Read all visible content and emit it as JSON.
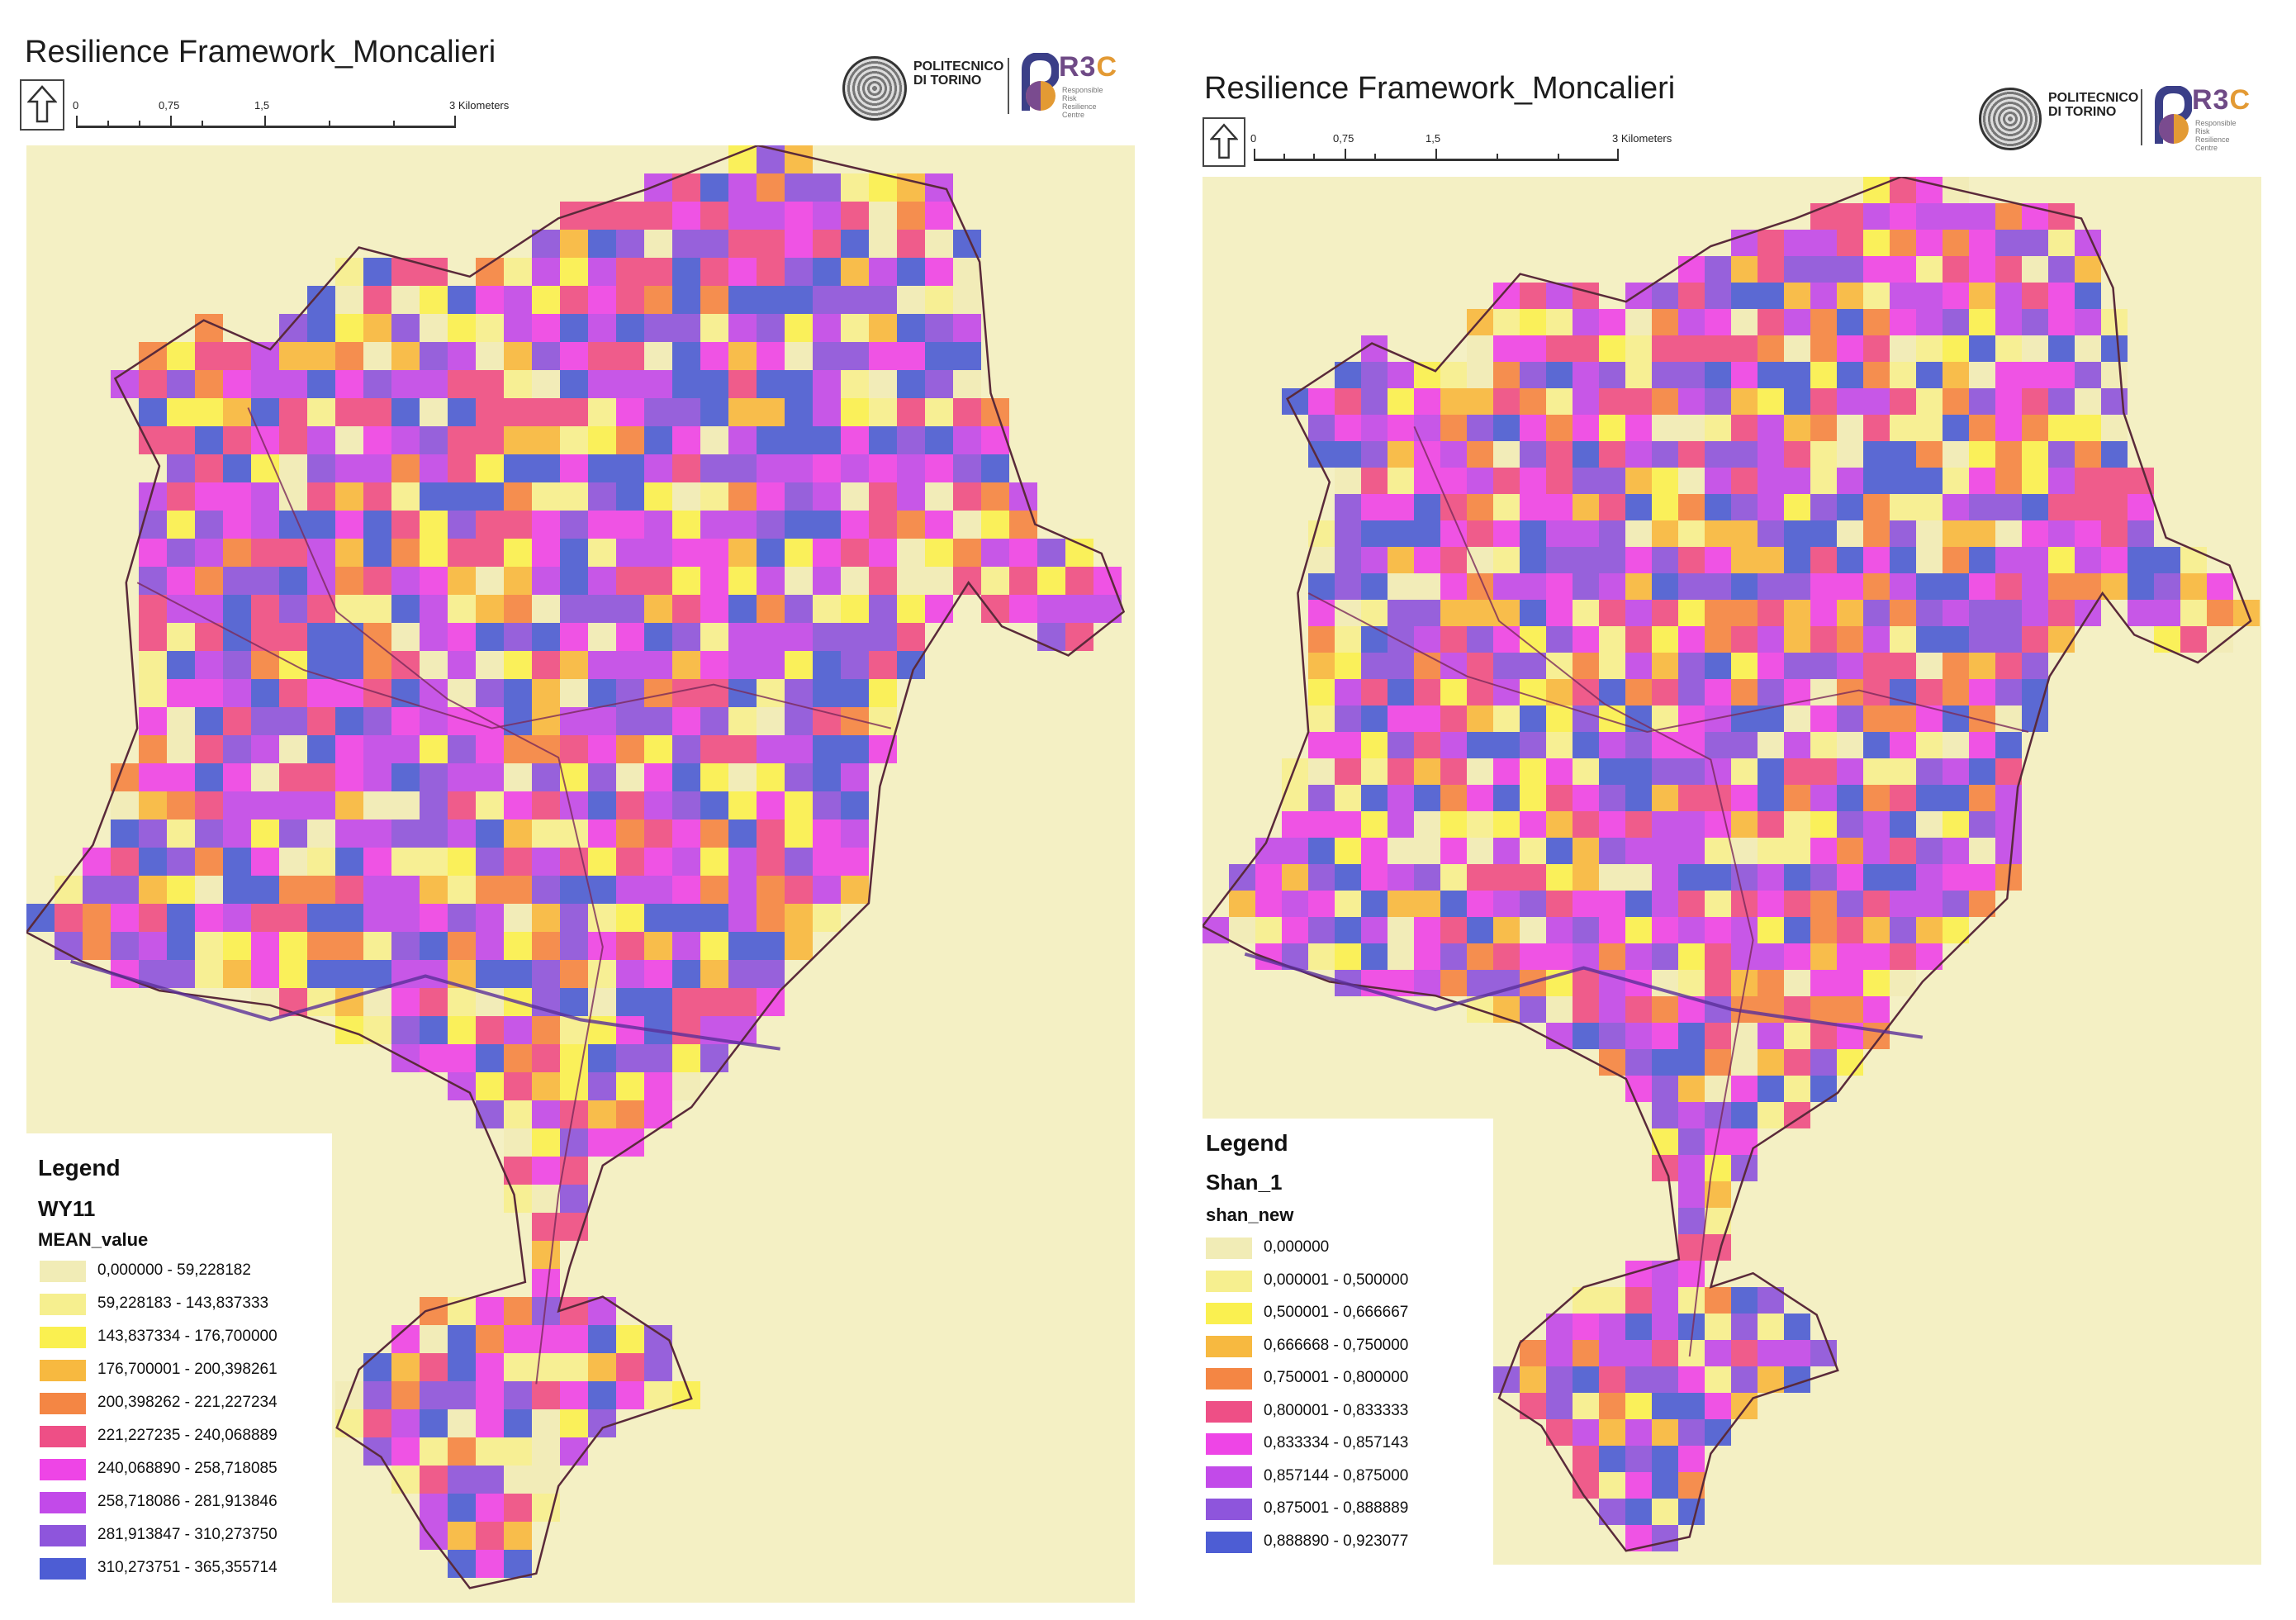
{
  "colors": {
    "background": "#f4f0c4",
    "boundary": "#5a2a3a",
    "road": "#7a2a5a",
    "highway": "#5a2f9a"
  },
  "panels": [
    {
      "title": "Resilience Framework_Moncalieri",
      "north_icon": "north-arrow-icon",
      "scale": {
        "labels": [
          "0",
          "0,75",
          "1,5",
          "3 Kilometers"
        ]
      },
      "logo": {
        "university": "POLITECNICO\nDI TORINO",
        "brand_r3": "R3",
        "brand_c": "C",
        "brand_sub": "Responsible\nRisk\nResilience\nCentre"
      },
      "legend": {
        "title": "Legend",
        "layer": "WY11",
        "field": "MEAN_value",
        "items": [
          {
            "label": "0,000000 - 59,228182",
            "color": "#f1ecb6"
          },
          {
            "label": "59,228183 - 143,837333",
            "color": "#f6ef8f"
          },
          {
            "label": "143,837334 - 176,700000",
            "color": "#faf050"
          },
          {
            "label": "176,700001 - 200,398261",
            "color": "#f7b940"
          },
          {
            "label": "200,398262 - 221,227234",
            "color": "#f48644"
          },
          {
            "label": "221,227235 - 240,068889",
            "color": "#ee4f86"
          },
          {
            "label": "240,068890 - 258,718085",
            "color": "#ee45e6"
          },
          {
            "label": "258,718086 - 281,913846",
            "color": "#c24ae9"
          },
          {
            "label": "281,913847 - 310,273750",
            "color": "#8e55dc"
          },
          {
            "label": "310,273751 - 365,355714",
            "color": "#4d5dd4"
          }
        ]
      }
    },
    {
      "title": "Resilience Framework_Moncalieri",
      "north_icon": "north-arrow-icon",
      "scale": {
        "labels": [
          "0",
          "0,75",
          "1,5",
          "3 Kilometers"
        ]
      },
      "logo": {
        "university": "POLITECNICO\nDI TORINO",
        "brand_r3": "R3",
        "brand_c": "C",
        "brand_sub": "Responsible\nRisk\nResilience\nCentre"
      },
      "legend": {
        "title": "Legend",
        "layer": "Shan_1",
        "field": "shan_new",
        "items": [
          {
            "label": "0,000000",
            "color": "#f1ecb6"
          },
          {
            "label": "0,000001 - 0,500000",
            "color": "#f6ef8f"
          },
          {
            "label": "0,500001 - 0,666667",
            "color": "#faf050"
          },
          {
            "label": "0,666668 - 0,750000",
            "color": "#f7b940"
          },
          {
            "label": "0,750001 - 0,800000",
            "color": "#f48644"
          },
          {
            "label": "0,800001 - 0,833333",
            "color": "#ee4f86"
          },
          {
            "label": "0,833334 - 0,857143",
            "color": "#ee45e6"
          },
          {
            "label": "0,857144 - 0,875000",
            "color": "#c24ae9"
          },
          {
            "label": "0,875001 - 0,888889",
            "color": "#8e55dc"
          },
          {
            "label": "0,888890 - 0,923077",
            "color": "#4d5dd4"
          }
        ]
      }
    }
  ]
}
